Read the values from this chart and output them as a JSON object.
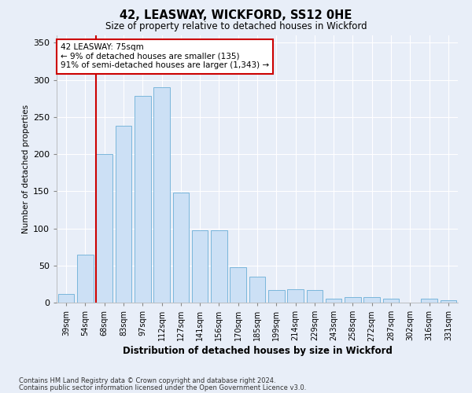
{
  "title": "42, LEASWAY, WICKFORD, SS12 0HE",
  "subtitle": "Size of property relative to detached houses in Wickford",
  "xlabel": "Distribution of detached houses by size in Wickford",
  "ylabel": "Number of detached properties",
  "bar_color": "#cce0f5",
  "bar_edge_color": "#6aaed6",
  "categories": [
    "39sqm",
    "54sqm",
    "68sqm",
    "83sqm",
    "97sqm",
    "112sqm",
    "127sqm",
    "141sqm",
    "156sqm",
    "170sqm",
    "185sqm",
    "199sqm",
    "214sqm",
    "229sqm",
    "243sqm",
    "258sqm",
    "272sqm",
    "287sqm",
    "302sqm",
    "316sqm",
    "331sqm"
  ],
  "values": [
    12,
    65,
    200,
    238,
    278,
    290,
    148,
    97,
    97,
    48,
    35,
    17,
    18,
    17,
    5,
    7,
    7,
    5,
    0,
    5,
    3
  ],
  "vline_color": "#cc0000",
  "vline_pos": 2,
  "ylim": [
    0,
    360
  ],
  "yticks": [
    0,
    50,
    100,
    150,
    200,
    250,
    300,
    350
  ],
  "annotation_text": "42 LEASWAY: 75sqm\n← 9% of detached houses are smaller (135)\n91% of semi-detached houses are larger (1,343) →",
  "annotation_box_color": "#ffffff",
  "annotation_box_edgecolor": "#cc0000",
  "bg_color": "#e8eef8",
  "grid_color": "#ffffff",
  "footer_line1": "Contains HM Land Registry data © Crown copyright and database right 2024.",
  "footer_line2": "Contains public sector information licensed under the Open Government Licence v3.0."
}
